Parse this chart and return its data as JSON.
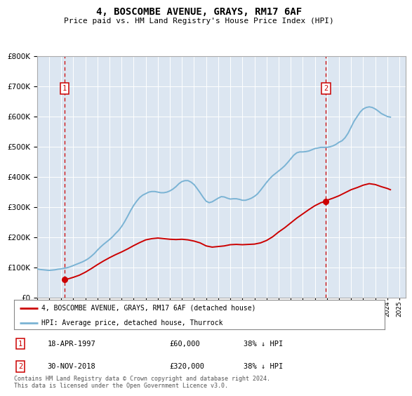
{
  "title": "4, BOSCOMBE AVENUE, GRAYS, RM17 6AF",
  "subtitle": "Price paid vs. HM Land Registry's House Price Index (HPI)",
  "plot_bg_color": "#dce6f1",
  "ylim": [
    0,
    800000
  ],
  "yticks": [
    0,
    100000,
    200000,
    300000,
    400000,
    500000,
    600000,
    700000,
    800000
  ],
  "xlim_start": 1995.0,
  "xlim_end": 2025.5,
  "hpi_color": "#7ab3d4",
  "price_color": "#cc0000",
  "purchase1": {
    "year": 1997.29,
    "price": 60000,
    "label": "1",
    "date": "18-APR-1997",
    "hpi_pct": "38% ↓ HPI"
  },
  "purchase2": {
    "year": 2018.92,
    "price": 320000,
    "label": "2",
    "date": "30-NOV-2018",
    "hpi_pct": "38% ↓ HPI"
  },
  "legend_label_price": "4, BOSCOMBE AVENUE, GRAYS, RM17 6AF (detached house)",
  "legend_label_hpi": "HPI: Average price, detached house, Thurrock",
  "footer": "Contains HM Land Registry data © Crown copyright and database right 2024.\nThis data is licensed under the Open Government Licence v3.0.",
  "hpi_years": [
    1995.0,
    1995.25,
    1995.5,
    1995.75,
    1996.0,
    1996.25,
    1996.5,
    1996.75,
    1997.0,
    1997.25,
    1997.5,
    1997.75,
    1998.0,
    1998.25,
    1998.5,
    1998.75,
    1999.0,
    1999.25,
    1999.5,
    1999.75,
    2000.0,
    2000.25,
    2000.5,
    2000.75,
    2001.0,
    2001.25,
    2001.5,
    2001.75,
    2002.0,
    2002.25,
    2002.5,
    2002.75,
    2003.0,
    2003.25,
    2003.5,
    2003.75,
    2004.0,
    2004.25,
    2004.5,
    2004.75,
    2005.0,
    2005.25,
    2005.5,
    2005.75,
    2006.0,
    2006.25,
    2006.5,
    2006.75,
    2007.0,
    2007.25,
    2007.5,
    2007.75,
    2008.0,
    2008.25,
    2008.5,
    2008.75,
    2009.0,
    2009.25,
    2009.5,
    2009.75,
    2010.0,
    2010.25,
    2010.5,
    2010.75,
    2011.0,
    2011.25,
    2011.5,
    2011.75,
    2012.0,
    2012.25,
    2012.5,
    2012.75,
    2013.0,
    2013.25,
    2013.5,
    2013.75,
    2014.0,
    2014.25,
    2014.5,
    2014.75,
    2015.0,
    2015.25,
    2015.5,
    2015.75,
    2016.0,
    2016.25,
    2016.5,
    2016.75,
    2017.0,
    2017.25,
    2017.5,
    2017.75,
    2018.0,
    2018.25,
    2018.5,
    2018.75,
    2019.0,
    2019.25,
    2019.5,
    2019.75,
    2020.0,
    2020.25,
    2020.5,
    2020.75,
    2021.0,
    2021.25,
    2021.5,
    2021.75,
    2022.0,
    2022.25,
    2022.5,
    2022.75,
    2023.0,
    2023.25,
    2023.5,
    2023.75,
    2024.0,
    2024.25
  ],
  "hpi_values": [
    96000,
    94000,
    93000,
    92000,
    91000,
    92000,
    93000,
    95000,
    96000,
    98000,
    100000,
    103000,
    107000,
    111000,
    115000,
    119000,
    124000,
    130000,
    138000,
    147000,
    158000,
    168000,
    177000,
    185000,
    193000,
    202000,
    213000,
    223000,
    236000,
    252000,
    270000,
    289000,
    306000,
    320000,
    332000,
    340000,
    345000,
    350000,
    352000,
    352000,
    350000,
    348000,
    348000,
    350000,
    354000,
    360000,
    368000,
    378000,
    385000,
    388000,
    388000,
    383000,
    375000,
    362000,
    348000,
    333000,
    320000,
    315000,
    318000,
    324000,
    330000,
    335000,
    334000,
    330000,
    327000,
    328000,
    328000,
    326000,
    323000,
    323000,
    326000,
    330000,
    336000,
    344000,
    356000,
    369000,
    382000,
    394000,
    404000,
    412000,
    420000,
    428000,
    437000,
    448000,
    460000,
    472000,
    480000,
    483000,
    483000,
    484000,
    486000,
    490000,
    494000,
    496000,
    498000,
    498000,
    498000,
    500000,
    503000,
    508000,
    515000,
    520000,
    530000,
    545000,
    565000,
    585000,
    600000,
    615000,
    625000,
    630000,
    632000,
    630000,
    625000,
    618000,
    610000,
    605000,
    600000,
    598000
  ],
  "price_line_years": [
    1997.29,
    1997.5,
    1998.0,
    1998.5,
    1999.0,
    1999.5,
    2000.0,
    2000.5,
    2001.0,
    2001.5,
    2002.0,
    2002.5,
    2003.0,
    2003.5,
    2004.0,
    2004.5,
    2005.0,
    2005.5,
    2006.0,
    2006.5,
    2007.0,
    2007.5,
    2008.0,
    2008.5,
    2009.0,
    2009.5,
    2010.0,
    2010.5,
    2011.0,
    2011.5,
    2012.0,
    2012.5,
    2013.0,
    2013.5,
    2014.0,
    2014.5,
    2015.0,
    2015.5,
    2016.0,
    2016.5,
    2017.0,
    2017.5,
    2018.0,
    2018.5,
    2018.92,
    2019.0,
    2019.5,
    2020.0,
    2020.5,
    2021.0,
    2021.5,
    2022.0,
    2022.5,
    2023.0,
    2023.5,
    2024.0,
    2024.25
  ],
  "price_line_values": [
    60000,
    62000,
    68000,
    75000,
    85000,
    97000,
    110000,
    122000,
    133000,
    143000,
    152000,
    162000,
    173000,
    183000,
    192000,
    196000,
    198000,
    196000,
    194000,
    193000,
    194000,
    192000,
    188000,
    182000,
    172000,
    168000,
    170000,
    172000,
    176000,
    177000,
    176000,
    177000,
    178000,
    182000,
    190000,
    202000,
    218000,
    232000,
    248000,
    264000,
    278000,
    292000,
    305000,
    315000,
    320000,
    323000,
    330000,
    338000,
    348000,
    358000,
    365000,
    373000,
    378000,
    375000,
    368000,
    362000,
    358000
  ]
}
